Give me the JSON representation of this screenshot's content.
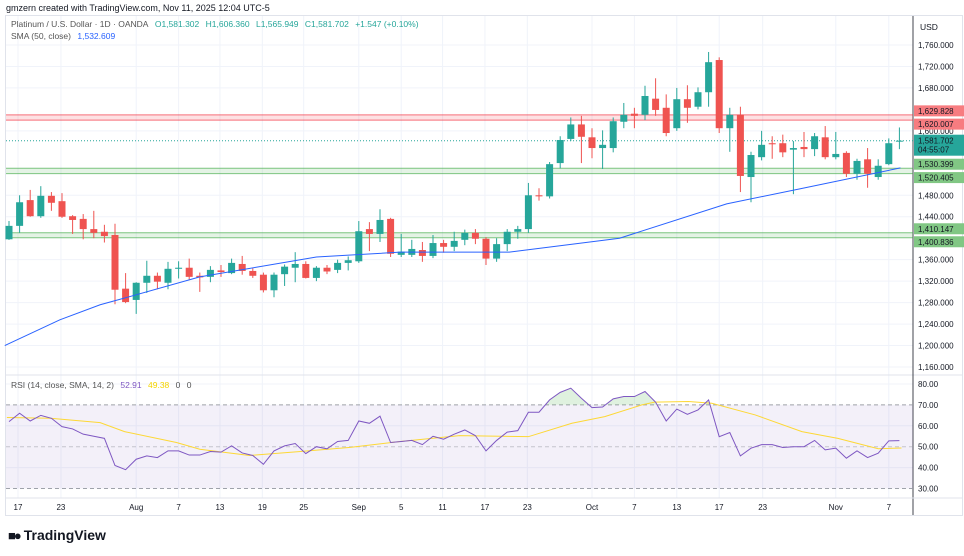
{
  "header": {
    "credit": "gmzern created with TradingView.com, Nov 11, 2025 12:04 UTC-5",
    "symbol": "Platinum / U.S. Dollar · 1D · OANDA",
    "open": "O1,581.302",
    "high": "H1,606.360",
    "low": "L1,565.949",
    "close": "C1,581.702",
    "change": "+1.547 (+0.10%)",
    "sma_label": "SMA (50, close)",
    "sma_value": "1,532.609",
    "rsi_label": "RSI (14, close, SMA, 14, 2)",
    "rsi_value": "52.91",
    "rsi_ma_value": "49.38",
    "rsi_extra1": "0",
    "rsi_extra2": "0"
  },
  "currency": "USD",
  "brand": "TradingView",
  "colors": {
    "up": "#26a69a",
    "down": "#ef5350",
    "sma": "#2962ff",
    "rsi": "#7e57c2",
    "rsi_ma": "#fdd835",
    "zone_red": "#f23645",
    "zone_green": "#4caf50"
  },
  "chart_data": [
    {
      "type": "candlestick",
      "title": "Platinum / U.S. Dollar · 1D · OANDA",
      "ylim": [
        1160,
        1760
      ],
      "y_ticks": [
        1760,
        1720,
        1680,
        1600,
        1480,
        1440,
        1360,
        1320,
        1280,
        1240,
        1200,
        1160
      ],
      "y_tick_labels": [
        "1,760.000",
        "1,720.000",
        "1,680.000",
        "1,600.000",
        "1,480.000",
        "1,440.000",
        "1,360.000",
        "1,320.000",
        "1,280.000",
        "1,240.000",
        "1,200.000",
        "1,160.000"
      ],
      "x_labels": [
        {
          "label": "17",
          "bar": 0.85
        },
        {
          "label": "23",
          "bar": 4.9
        },
        {
          "label": "Aug",
          "bar": 12
        },
        {
          "label": "7",
          "bar": 16
        },
        {
          "label": "13",
          "bar": 19.9
        },
        {
          "label": "19",
          "bar": 23.9
        },
        {
          "label": "25",
          "bar": 27.8
        },
        {
          "label": "Sep",
          "bar": 33
        },
        {
          "label": "5",
          "bar": 37
        },
        {
          "label": "11",
          "bar": 40.9
        },
        {
          "label": "17",
          "bar": 44.9
        },
        {
          "label": "23",
          "bar": 48.9
        },
        {
          "label": "Oct",
          "bar": 55
        },
        {
          "label": "7",
          "bar": 59
        },
        {
          "label": "13",
          "bar": 63
        },
        {
          "label": "17",
          "bar": 67
        },
        {
          "label": "23",
          "bar": 71.1
        },
        {
          "label": "Nov",
          "bar": 78
        },
        {
          "label": "7",
          "bar": 83
        }
      ],
      "ohlc": [
        [
          1398,
          1432,
          1397,
          1423
        ],
        [
          1423,
          1480,
          1410,
          1467
        ],
        [
          1471,
          1490,
          1440,
          1441
        ],
        [
          1441,
          1497,
          1438,
          1479
        ],
        [
          1479,
          1486,
          1451,
          1466
        ],
        [
          1469,
          1484,
          1438,
          1440
        ],
        [
          1441,
          1443,
          1408,
          1434
        ],
        [
          1436,
          1445,
          1398,
          1417
        ],
        [
          1417,
          1451,
          1400,
          1410
        ],
        [
          1412,
          1425,
          1392,
          1404
        ],
        [
          1406,
          1427,
          1277,
          1304
        ],
        [
          1306,
          1335,
          1279,
          1281
        ],
        [
          1285,
          1318,
          1259,
          1317
        ],
        [
          1317,
          1358,
          1298,
          1330
        ],
        [
          1330,
          1336,
          1305,
          1319
        ],
        [
          1317,
          1356,
          1305,
          1343
        ],
        [
          1343,
          1357,
          1325,
          1345
        ],
        [
          1345,
          1362,
          1323,
          1328
        ],
        [
          1330,
          1336,
          1300,
          1327
        ],
        [
          1328,
          1348,
          1318,
          1341
        ],
        [
          1340,
          1350,
          1328,
          1337
        ],
        [
          1335,
          1362,
          1333,
          1354
        ],
        [
          1352,
          1367,
          1332,
          1339
        ],
        [
          1339,
          1344,
          1326,
          1330
        ],
        [
          1332,
          1336,
          1299,
          1303
        ],
        [
          1303,
          1336,
          1290,
          1332
        ],
        [
          1333,
          1351,
          1311,
          1347
        ],
        [
          1345,
          1374,
          1318,
          1352
        ],
        [
          1352,
          1357,
          1325,
          1326
        ],
        [
          1326,
          1348,
          1320,
          1345
        ],
        [
          1345,
          1350,
          1333,
          1338
        ],
        [
          1341,
          1360,
          1335,
          1354
        ],
        [
          1354,
          1366,
          1340,
          1359
        ],
        [
          1357,
          1432,
          1354,
          1413
        ],
        [
          1417,
          1430,
          1376,
          1408
        ],
        [
          1408,
          1454,
          1393,
          1434
        ],
        [
          1436,
          1438,
          1365,
          1371
        ],
        [
          1369,
          1408,
          1365,
          1375
        ],
        [
          1369,
          1397,
          1365,
          1380
        ],
        [
          1378,
          1393,
          1356,
          1367
        ],
        [
          1367,
          1406,
          1363,
          1391
        ],
        [
          1391,
          1397,
          1373,
          1384
        ],
        [
          1384,
          1412,
          1376,
          1395
        ],
        [
          1397,
          1416,
          1387,
          1410
        ],
        [
          1410,
          1417,
          1389,
          1399
        ],
        [
          1399,
          1402,
          1350,
          1362
        ],
        [
          1362,
          1400,
          1356,
          1389
        ],
        [
          1389,
          1417,
          1376,
          1412
        ],
        [
          1412,
          1423,
          1399,
          1417
        ],
        [
          1417,
          1503,
          1410,
          1480
        ],
        [
          1480,
          1493,
          1470,
          1478
        ],
        [
          1478,
          1542,
          1474,
          1538
        ],
        [
          1540,
          1590,
          1530,
          1583
        ],
        [
          1585,
          1625,
          1581,
          1612
        ],
        [
          1612,
          1628,
          1540,
          1589
        ],
        [
          1588,
          1605,
          1549,
          1568
        ],
        [
          1568,
          1601,
          1529,
          1574
        ],
        [
          1568,
          1625,
          1560,
          1618
        ],
        [
          1617,
          1652,
          1605,
          1630
        ],
        [
          1632,
          1643,
          1605,
          1628
        ],
        [
          1630,
          1684,
          1620,
          1665
        ],
        [
          1660,
          1698,
          1628,
          1639
        ],
        [
          1643,
          1668,
          1590,
          1596
        ],
        [
          1605,
          1680,
          1600,
          1659
        ],
        [
          1659,
          1685,
          1615,
          1643
        ],
        [
          1645,
          1681,
          1640,
          1672
        ],
        [
          1672,
          1747,
          1645,
          1728
        ],
        [
          1732,
          1737,
          1596,
          1605
        ],
        [
          1605,
          1643,
          1561,
          1630
        ],
        [
          1630,
          1645,
          1486,
          1516
        ],
        [
          1514,
          1561,
          1467,
          1555
        ],
        [
          1551,
          1600,
          1545,
          1574
        ],
        [
          1577,
          1590,
          1548,
          1575
        ],
        [
          1577,
          1593,
          1551,
          1560
        ],
        [
          1565,
          1581,
          1482,
          1568
        ],
        [
          1570,
          1598,
          1551,
          1566
        ],
        [
          1566,
          1596,
          1553,
          1590
        ],
        [
          1588,
          1609,
          1547,
          1551
        ],
        [
          1551,
          1598,
          1547,
          1557
        ],
        [
          1559,
          1562,
          1514,
          1520
        ],
        [
          1520,
          1548,
          1509,
          1544
        ],
        [
          1547,
          1568,
          1494,
          1520
        ],
        [
          1514,
          1547,
          1509,
          1535
        ],
        [
          1538,
          1586,
          1536,
          1577
        ],
        [
          1581.302,
          1606.36,
          1565.949,
          1581.702
        ]
      ],
      "sma50": [
        [
          -0.4,
          1200
        ],
        [
          4.8,
          1248
        ],
        [
          8.6,
          1276
        ],
        [
          11,
          1289
        ],
        [
          18,
          1328
        ],
        [
          29,
          1365
        ],
        [
          36.9,
          1374
        ],
        [
          47.2,
          1374
        ],
        [
          57.6,
          1400
        ],
        [
          67.7,
          1464
        ],
        [
          74.6,
          1492
        ],
        [
          84.1,
          1531
        ]
      ],
      "zones": [
        {
          "color": "red",
          "low": 1620.007,
          "high": 1629.828,
          "low_label": "1,620.007",
          "high_label": "1,629.828"
        },
        {
          "color": "green",
          "low": 1520.405,
          "high": 1530.399,
          "low_label": "1,520.405",
          "high_label": "1,530.399"
        },
        {
          "color": "green",
          "low": 1400.836,
          "high": 1410.147,
          "low_label": "1,400.836",
          "high_label": "1,410.147"
        }
      ],
      "last_price": 1581.702,
      "last_price_label": "1,581.702",
      "countdown": "04:55:07"
    },
    {
      "type": "line",
      "title": "RSI (14, close, SMA, 14, 2)",
      "ylim": [
        28,
        83
      ],
      "y_ticks": [
        80,
        70,
        60,
        50,
        40,
        30
      ],
      "y_tick_labels": [
        "80.00",
        "70.00",
        "60.00",
        "50.00",
        "40.00",
        "30.00"
      ],
      "bands": {
        "upper": 70,
        "middle": 50,
        "lower": 30
      },
      "rsi": [
        62,
        66,
        62.3,
        65,
        63.6,
        59.6,
        58.5,
        56,
        55,
        54,
        41,
        39,
        44,
        45.6,
        44.8,
        48,
        48,
        46,
        46,
        47.7,
        47.4,
        50.4,
        47,
        45.8,
        41.6,
        48,
        50.4,
        51.5,
        46.7,
        50,
        49,
        52.5,
        53,
        62.3,
        61.2,
        64.6,
        52,
        52.5,
        53,
        51,
        55,
        53.6,
        56,
        58,
        55.3,
        48,
        53,
        57,
        57.7,
        66.5,
        66.5,
        72.4,
        76,
        78,
        73.2,
        68.7,
        69,
        72.9,
        74,
        74,
        76.4,
        71.3,
        62.3,
        68,
        65.5,
        67.6,
        72.4,
        54.8,
        56.8,
        45.6,
        49.3,
        51,
        51,
        49.6,
        50,
        50,
        53,
        48.5,
        49.3,
        44.5,
        48,
        44.8,
        46.9,
        52.8,
        52.91
      ],
      "rsi_ma": [
        [
          -0.2,
          64
        ],
        [
          3.9,
          63.6
        ],
        [
          8.6,
          61.5
        ],
        [
          10.9,
          57.2
        ],
        [
          15.8,
          52
        ],
        [
          18,
          48.8
        ],
        [
          22.7,
          45.8
        ],
        [
          27.5,
          47.7
        ],
        [
          32.2,
          49.7
        ],
        [
          36.9,
          52.5
        ],
        [
          42.5,
          55.3
        ],
        [
          49,
          54.8
        ],
        [
          53.1,
          61.2
        ],
        [
          56.2,
          64.4
        ],
        [
          59.7,
          70
        ],
        [
          60.9,
          71.3
        ],
        [
          64.1,
          71.6
        ],
        [
          66.3,
          70.8
        ],
        [
          70.4,
          65.2
        ],
        [
          74.8,
          57.2
        ],
        [
          78.2,
          54
        ],
        [
          82,
          49
        ],
        [
          84.2,
          49.38
        ]
      ]
    }
  ]
}
